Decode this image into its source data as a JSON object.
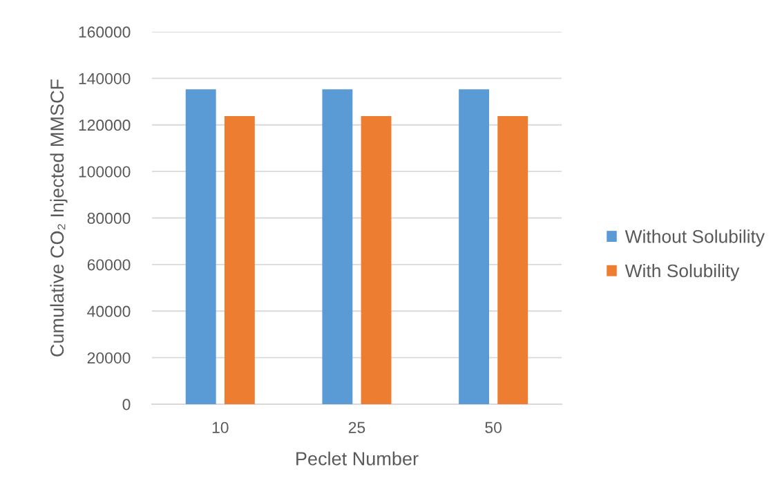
{
  "chart_data": {
    "type": "bar",
    "xlabel": "Peclet Number",
    "ylabel": "Cumulative CO₂ Injected MMSCF",
    "categories": [
      "10",
      "25",
      "50"
    ],
    "series": [
      {
        "name": "Without Solubility",
        "color": "#5b9bd5",
        "values": [
          135300,
          135300,
          135300
        ]
      },
      {
        "name": "With Solubility",
        "color": "#ed7d31",
        "values": [
          123800,
          123800,
          123800
        ]
      }
    ],
    "ylim": [
      0,
      160000
    ],
    "yticks": [
      0,
      20000,
      40000,
      60000,
      80000,
      100000,
      120000,
      140000,
      160000
    ],
    "grid": "y",
    "legend": "right"
  }
}
